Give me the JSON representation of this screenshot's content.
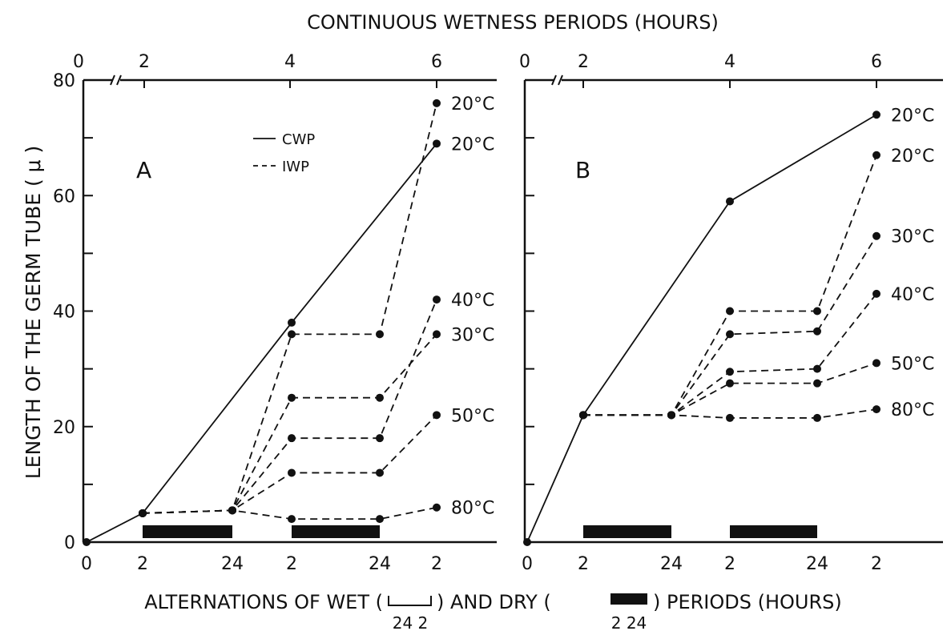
{
  "figure": {
    "top_title": "CONTINUOUS  WETNESS  PERIODS (HOURS)",
    "ylabel": "LENGTH  OF  THE  GERM  TUBE  ( μ )",
    "xlabel_left": "ALTERNATIONS  OF  WET  (",
    "xlabel_mid1": ")  AND  DRY  (",
    "xlabel_right": ")  PERIODS  (HOURS)",
    "wet_symbol_sub": "24  2",
    "dry_symbol_sub": "2   24",
    "axis_break_mark": "//"
  },
  "chart_data": [
    {
      "type": "line",
      "panel_label": "A",
      "legend": {
        "entries": [
          "CWP",
          "IWP"
        ],
        "styles": [
          "solid",
          "dashed"
        ]
      },
      "top_axis_ticks": [
        "0",
        "2",
        "4",
        "6"
      ],
      "bottom_axis_ticks": [
        "0",
        "2",
        "24",
        "2",
        "24",
        "2"
      ],
      "y_ticks": [
        "0",
        "20",
        "40",
        "60",
        "80"
      ],
      "ylim": [
        0,
        80
      ],
      "grid": false,
      "dry_periods": [
        [
          1,
          2
        ],
        [
          3,
          4
        ]
      ],
      "series": [
        {
          "style": "solid",
          "x": [
            0,
            1,
            3,
            5
          ],
          "values": [
            0,
            5,
            38,
            69
          ]
        },
        {
          "style": "dashed",
          "label": "20°C",
          "x": [
            1,
            2,
            3,
            4,
            5
          ],
          "values": [
            5,
            5.5,
            36,
            36,
            76
          ]
        },
        {
          "style": "dashed",
          "label": "40°C",
          "x": [
            1,
            2,
            3,
            4,
            5
          ],
          "values": [
            5,
            5.5,
            18,
            18,
            42
          ]
        },
        {
          "style": "dashed",
          "label": "30°C",
          "x": [
            1,
            2,
            3,
            4,
            5
          ],
          "values": [
            5,
            5.5,
            25,
            25,
            36
          ]
        },
        {
          "style": "dashed",
          "label": "50°C",
          "x": [
            1,
            2,
            3,
            4,
            5
          ],
          "values": [
            5,
            5.5,
            12,
            12,
            22
          ]
        },
        {
          "style": "dashed",
          "label": "80°C",
          "x": [
            1,
            2,
            3,
            4,
            5
          ],
          "values": [
            5,
            5.5,
            4,
            4,
            6
          ]
        }
      ],
      "end_labels": [
        {
          "text": "20°C",
          "y": 76
        },
        {
          "text": "20°C",
          "y": 69
        },
        {
          "text": "40°C",
          "y": 42
        },
        {
          "text": "30°C",
          "y": 36
        },
        {
          "text": "50°C",
          "y": 22
        },
        {
          "text": "80°C",
          "y": 6
        }
      ]
    },
    {
      "type": "line",
      "panel_label": "B",
      "top_axis_ticks": [
        "0",
        "2",
        "4",
        "6"
      ],
      "bottom_axis_ticks": [
        "0",
        "2",
        "24",
        "2",
        "24",
        "2"
      ],
      "ylim": [
        0,
        80
      ],
      "grid": false,
      "dry_periods": [
        [
          1,
          2
        ],
        [
          3,
          4
        ]
      ],
      "series": [
        {
          "style": "solid",
          "x": [
            0,
            1,
            3,
            5
          ],
          "values": [
            0,
            22,
            59,
            74
          ]
        },
        {
          "style": "dashed",
          "label": "20°C",
          "x": [
            1,
            2,
            3,
            4,
            5
          ],
          "values": [
            22,
            22,
            40,
            40,
            67
          ]
        },
        {
          "style": "dashed",
          "label": "30°C",
          "x": [
            1,
            2,
            3,
            4,
            5
          ],
          "values": [
            22,
            22,
            36,
            36.5,
            53
          ]
        },
        {
          "style": "dashed",
          "label": "40°C",
          "x": [
            1,
            2,
            3,
            4,
            5
          ],
          "values": [
            22,
            22,
            29.5,
            30,
            43
          ]
        },
        {
          "style": "dashed",
          "label": "50°C",
          "x": [
            1,
            2,
            3,
            4,
            5
          ],
          "values": [
            22,
            22,
            27.5,
            27.5,
            31
          ]
        },
        {
          "style": "dashed",
          "label": "80°C",
          "x": [
            1,
            2,
            3,
            4,
            5
          ],
          "values": [
            22,
            22,
            21.5,
            21.5,
            23
          ]
        }
      ],
      "end_labels": [
        {
          "text": "20°C",
          "y": 74
        },
        {
          "text": "20°C",
          "y": 67
        },
        {
          "text": "30°C",
          "y": 53
        },
        {
          "text": "40°C",
          "y": 43
        },
        {
          "text": "50°C",
          "y": 31
        },
        {
          "text": "80°C",
          "y": 23
        }
      ]
    }
  ]
}
